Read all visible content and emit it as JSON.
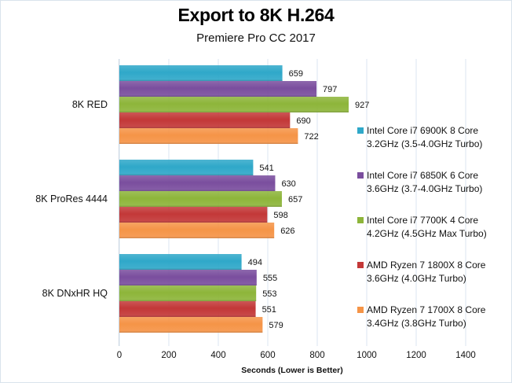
{
  "chart_data": {
    "type": "bar",
    "orientation": "horizontal",
    "title": "Export to 8K H.264",
    "subtitle": "Premiere Pro CC 2017",
    "xlabel": "Seconds  (Lower is Better)",
    "ylabel": "",
    "xlim": [
      0,
      1400
    ],
    "xticks": [
      "0",
      "200",
      "400",
      "600",
      "800",
      "1000",
      "1200",
      "1400"
    ],
    "grid": true,
    "legend_position": "right",
    "categories": [
      "8K RED",
      "8K ProRes 4444",
      "8K DNxHR HQ"
    ],
    "series": [
      {
        "name": "Intel Core i7 6900K 8 Core",
        "name_line2": "3.2GHz (3.5-4.0GHz Turbo)",
        "color": "#2fa8c9",
        "values": [
          659,
          541,
          494
        ]
      },
      {
        "name": "Intel Core i7 6850K 6 Core",
        "name_line2": "3.6GHz (3.7-4.0GHz Turbo)",
        "color": "#7a4e9e",
        "values": [
          797,
          630,
          555
        ]
      },
      {
        "name": "Intel Core i7 7700K 4 Core",
        "name_line2": "4.2GHz (4.5GHz Max Turbo)",
        "color": "#8db53a",
        "values": [
          927,
          657,
          553
        ]
      },
      {
        "name": "AMD Ryzen 7 1800X 8 Core",
        "name_line2": "3.6GHz (4.0GHz Turbo)",
        "color": "#c33838",
        "values": [
          690,
          598,
          551
        ]
      },
      {
        "name": "AMD Ryzen 7 1700X 8 Core",
        "name_line2": "3.4GHz (3.8GHz Turbo)",
        "color": "#f59447",
        "values": [
          722,
          626,
          579
        ]
      }
    ]
  }
}
